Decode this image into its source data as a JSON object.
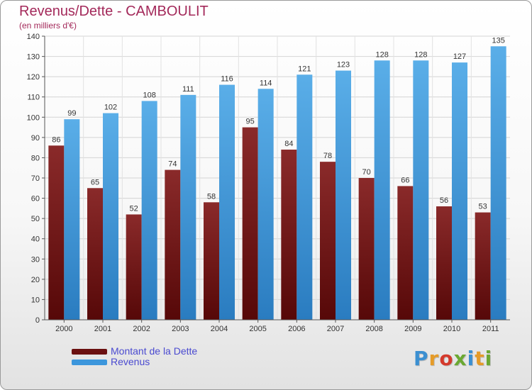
{
  "chart_data": {
    "type": "bar",
    "title": "Revenus/Dette - CAMBOULIT",
    "subtitle": "(en milliers d'€)",
    "categories": [
      "2000",
      "2001",
      "2002",
      "2003",
      "2004",
      "2005",
      "2006",
      "2007",
      "2008",
      "2009",
      "2010",
      "2011"
    ],
    "series": [
      {
        "name": "Montant de la Dette",
        "color": "#7b1a1a",
        "values": [
          86,
          65,
          52,
          74,
          58,
          95,
          84,
          78,
          70,
          66,
          56,
          53
        ]
      },
      {
        "name": "Revenus",
        "color": "#3c96dc",
        "values": [
          99,
          102,
          108,
          111,
          116,
          114,
          121,
          123,
          128,
          128,
          127,
          135
        ]
      }
    ],
    "ylim": [
      0,
      140
    ],
    "yticks": [
      0,
      10,
      20,
      30,
      40,
      50,
      60,
      70,
      80,
      90,
      100,
      110,
      120,
      130,
      140
    ],
    "grid": true,
    "legend": "bottom-left",
    "data_labels": true
  },
  "logo": {
    "letters": [
      "P",
      "r",
      "o",
      "x",
      "i",
      "t",
      "i"
    ],
    "colors": [
      "#3b8fd1",
      "#e59b28",
      "#d43a2c",
      "#6aa832",
      "#3b8fd1",
      "#e59b28",
      "#6aa832"
    ]
  }
}
